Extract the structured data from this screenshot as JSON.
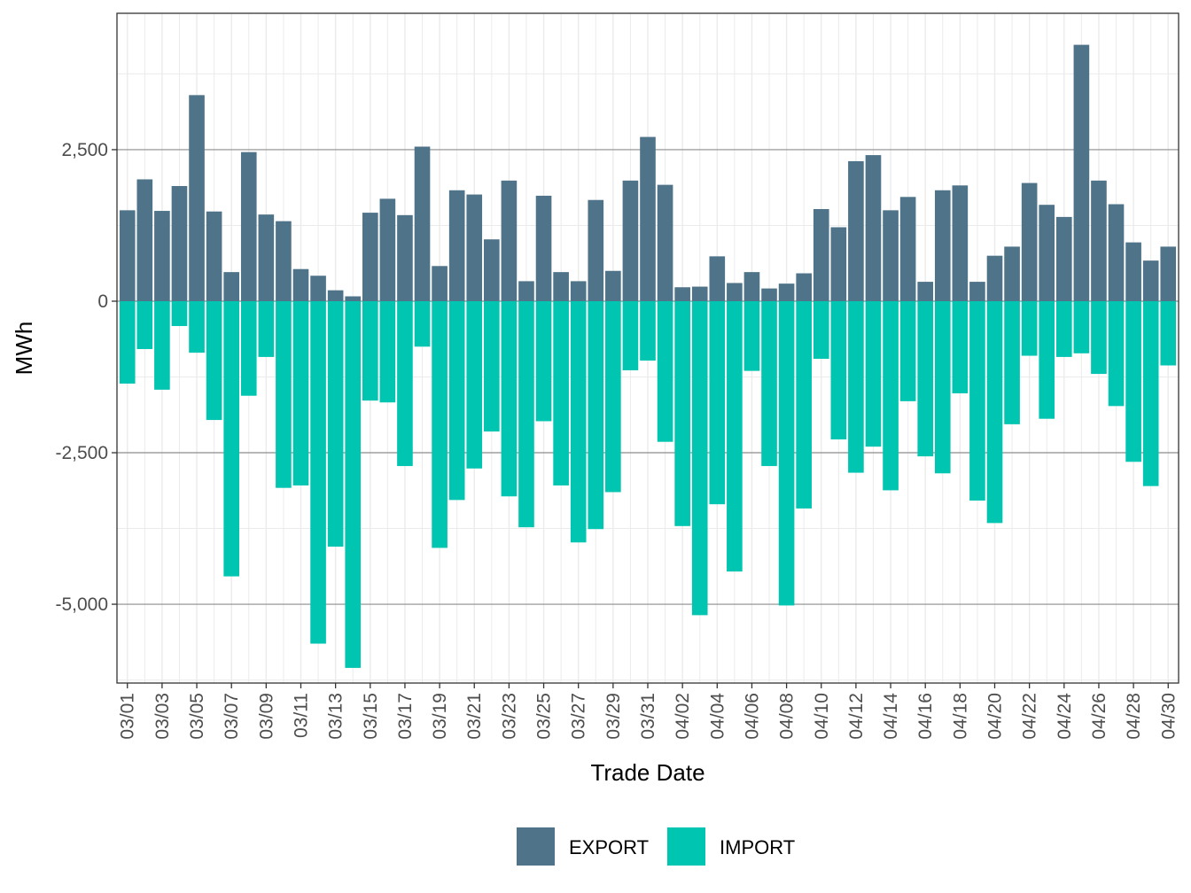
{
  "chart_data": {
    "type": "bar",
    "stacked": "diverging",
    "xlabel": "Trade Date",
    "ylabel": "MWh",
    "ylim": [
      -6300,
      4750
    ],
    "yticks": [
      {
        "value": 2500,
        "label": "2,500"
      },
      {
        "value": 0,
        "label": "0"
      },
      {
        "value": -2500,
        "label": "-2,500"
      },
      {
        "value": -5000,
        "label": "-5,000"
      }
    ],
    "tick_labels": [
      "03/01",
      "03/03",
      "03/05",
      "03/07",
      "03/09",
      "03/11",
      "03/13",
      "03/15",
      "03/17",
      "03/19",
      "03/21",
      "03/23",
      "03/25",
      "03/27",
      "03/29",
      "03/31",
      "04/02",
      "04/04",
      "04/06",
      "04/08",
      "04/10",
      "04/12",
      "04/14",
      "04/16",
      "04/18",
      "04/20",
      "04/22",
      "04/24",
      "04/26",
      "04/28",
      "04/30"
    ],
    "categories": [
      "03/01",
      "03/02",
      "03/03",
      "03/04",
      "03/05",
      "03/06",
      "03/07",
      "03/08",
      "03/09",
      "03/10",
      "03/11",
      "03/12",
      "03/13",
      "03/14",
      "03/15",
      "03/16",
      "03/17",
      "03/18",
      "03/19",
      "03/20",
      "03/21",
      "03/22",
      "03/23",
      "03/24",
      "03/25",
      "03/26",
      "03/27",
      "03/28",
      "03/29",
      "03/30",
      "03/31",
      "04/01",
      "04/02",
      "04/03",
      "04/04",
      "04/05",
      "04/06",
      "04/07",
      "04/08",
      "04/09",
      "04/10",
      "04/11",
      "04/12",
      "04/13",
      "04/14",
      "04/15",
      "04/16",
      "04/17",
      "04/18",
      "04/19",
      "04/20",
      "04/21",
      "04/22",
      "04/23",
      "04/24",
      "04/25",
      "04/26",
      "04/27",
      "04/28",
      "04/29",
      "04/30"
    ],
    "series": [
      {
        "name": "EXPORT",
        "color": "#4f7389",
        "values": [
          1500,
          2010,
          1490,
          1900,
          3400,
          1480,
          480,
          2460,
          1430,
          1320,
          530,
          420,
          180,
          80,
          1460,
          1690,
          1420,
          2550,
          580,
          1830,
          1760,
          1020,
          1990,
          330,
          1740,
          480,
          330,
          1670,
          500,
          1990,
          2710,
          1920,
          230,
          240,
          740,
          300,
          480,
          210,
          290,
          460,
          1520,
          1220,
          2310,
          2410,
          1500,
          1720,
          320,
          1830,
          1910,
          320,
          750,
          900,
          1950,
          1590,
          1390,
          4230,
          1990,
          1600,
          970,
          670,
          900
        ]
      },
      {
        "name": "IMPORT",
        "color": "#00c5b0",
        "values": [
          -1360,
          -790,
          -1460,
          -410,
          -850,
          -1960,
          -4540,
          -1560,
          -920,
          -3080,
          -3040,
          -5650,
          -4050,
          -6050,
          -1640,
          -1670,
          -2720,
          -750,
          -4070,
          -3280,
          -2760,
          -2150,
          -3220,
          -3730,
          -1980,
          -3040,
          -3980,
          -3760,
          -3150,
          -1140,
          -980,
          -2320,
          -3710,
          -5180,
          -3350,
          -4460,
          -1150,
          -2720,
          -5020,
          -3420,
          -950,
          -2280,
          -2830,
          -2400,
          -3120,
          -1650,
          -2560,
          -2840,
          -1520,
          -3290,
          -3660,
          -2030,
          -900,
          -1940,
          -920,
          -860,
          -1200,
          -1730,
          -2650,
          -3050,
          -1060
        ]
      }
    ],
    "legend": {
      "position": "bottom",
      "entries": [
        "EXPORT",
        "IMPORT"
      ]
    }
  }
}
